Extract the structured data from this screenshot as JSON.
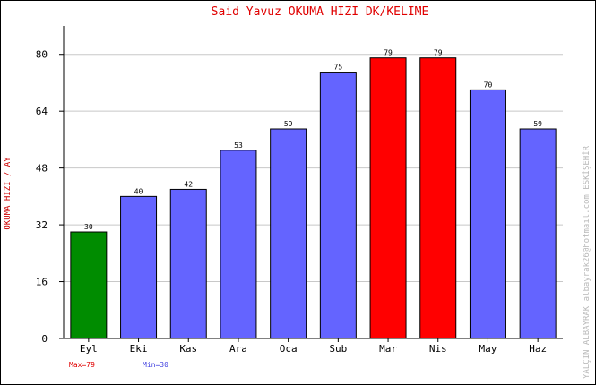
{
  "chart_data": {
    "type": "bar",
    "title": "Said Yavuz   OKUMA HIZI  DK/KELIME",
    "ylabel": "OKUMA HIZI / AY",
    "xlabel": "",
    "categories": [
      "Eyl",
      "Eki",
      "Kas",
      "Ara",
      "Oca",
      "Sub",
      "Mar",
      "Nis",
      "May",
      "Haz"
    ],
    "values": [
      30,
      40,
      42,
      53,
      59,
      75,
      79,
      79,
      70,
      59
    ],
    "ylim": [
      0,
      88
    ],
    "yticks": [
      0,
      16,
      32,
      48,
      64,
      80
    ],
    "grid": true,
    "colors": {
      "default": "#6464ff",
      "max": "#ff0000",
      "min": "#008c00"
    },
    "max_label": "Max=79",
    "min_label": "Min=30",
    "side_text": "YALÇIN ALBAYRAK   albayrak26@hotmail.com   ESKİŞEHİR"
  }
}
